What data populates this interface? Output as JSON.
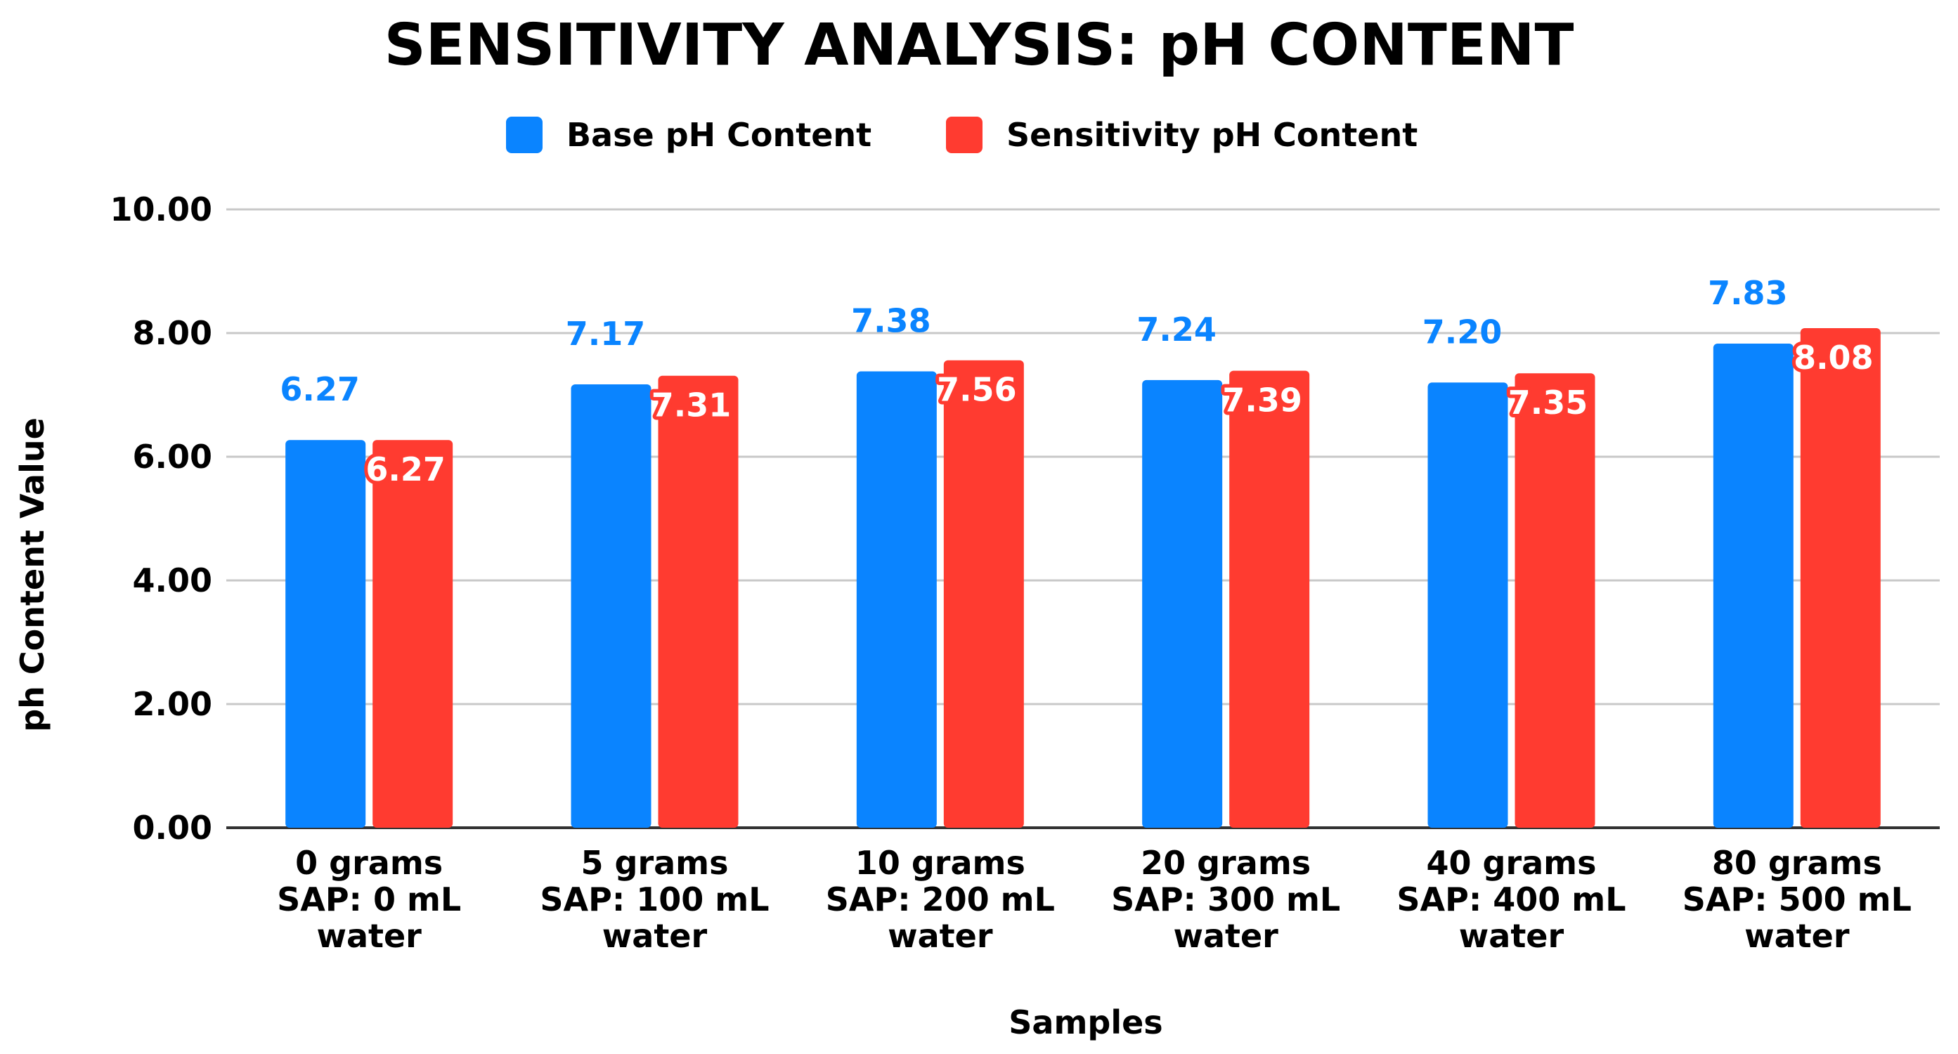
{
  "chart_data": {
    "type": "bar",
    "title": "SENSITIVITY ANALYSIS: pH CONTENT",
    "xlabel": "Samples",
    "ylabel": "ph Content Value",
    "ylim": [
      0,
      10
    ],
    "y_ticks": [
      0,
      2,
      4,
      6,
      8,
      10
    ],
    "y_tick_labels": [
      "0.00",
      "2.00",
      "4.00",
      "6.00",
      "8.00",
      "10.00"
    ],
    "grid": true,
    "legend_position": "top-center",
    "categories": [
      [
        "0 grams",
        "SAP: 0 mL",
        "water"
      ],
      [
        "5 grams",
        "SAP: 100 mL",
        "water"
      ],
      [
        "10 grams",
        "SAP: 200 mL",
        "water"
      ],
      [
        "20 grams",
        "SAP: 300 mL",
        "water"
      ],
      [
        "40 grams",
        "SAP: 400 mL",
        "water"
      ],
      [
        "80 grams",
        "SAP: 500 mL",
        "water"
      ]
    ],
    "series": [
      {
        "name": "Base pH Content",
        "color": "#0a84ff",
        "values": [
          6.27,
          7.17,
          7.38,
          7.24,
          7.2,
          7.83
        ],
        "labels": [
          "6.27",
          "7.17",
          "7.38",
          "7.24",
          "7.20",
          "7.83"
        ],
        "label_style": "above"
      },
      {
        "name": "Sensitivity pH Content",
        "color": "#ff3b30",
        "values": [
          6.27,
          7.31,
          7.56,
          7.39,
          7.35,
          8.08
        ],
        "labels": [
          "6.27",
          "7.31",
          "7.56",
          "7.39",
          "7.35",
          "8.08"
        ],
        "label_style": "inside"
      }
    ]
  }
}
